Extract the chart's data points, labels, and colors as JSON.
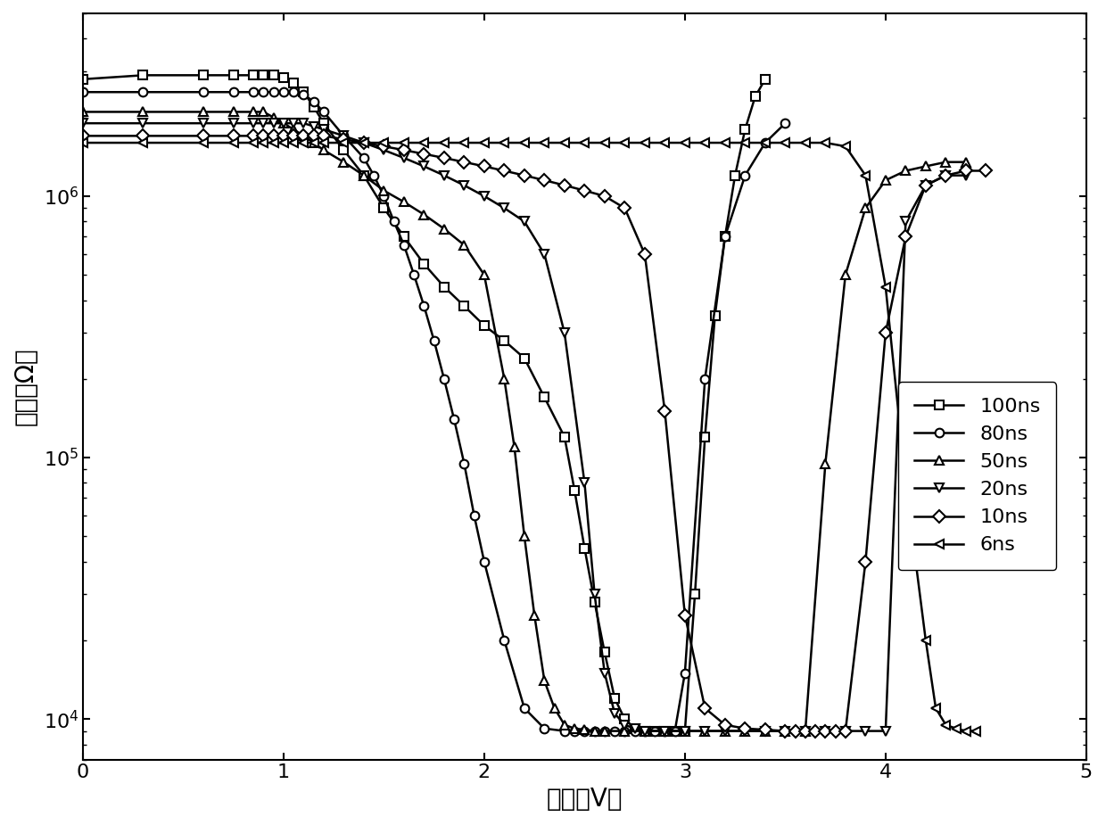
{
  "xlabel": "电压（V）",
  "ylabel": "电阵（Ω）",
  "xlim": [
    0,
    5
  ],
  "ylim": [
    7000,
    5000000
  ],
  "series": [
    {
      "label": "100ns",
      "marker": "s",
      "x": [
        0.0,
        0.3,
        0.6,
        0.75,
        0.85,
        0.9,
        0.95,
        1.0,
        1.05,
        1.1,
        1.15,
        1.2,
        1.3,
        1.4,
        1.5,
        1.6,
        1.7,
        1.8,
        1.9,
        2.0,
        2.1,
        2.2,
        2.3,
        2.4,
        2.45,
        2.5,
        2.55,
        2.6,
        2.65,
        2.7,
        2.75,
        2.8,
        2.85,
        2.9,
        2.95,
        3.0,
        3.05,
        3.1,
        3.15,
        3.2,
        3.25,
        3.3,
        3.35,
        3.4
      ],
      "y": [
        2800000,
        2900000,
        2900000,
        2900000,
        2900000,
        2900000,
        2900000,
        2850000,
        2700000,
        2500000,
        2200000,
        1900000,
        1500000,
        1200000,
        900000,
        700000,
        550000,
        450000,
        380000,
        320000,
        280000,
        240000,
        170000,
        120000,
        75000,
        45000,
        28000,
        18000,
        12000,
        10000,
        9200,
        9000,
        9000,
        9000,
        9000,
        9000,
        30000,
        120000,
        350000,
        700000,
        1200000,
        1800000,
        2400000,
        2800000
      ]
    },
    {
      "label": "80ns",
      "marker": "o",
      "x": [
        0.0,
        0.3,
        0.6,
        0.75,
        0.85,
        0.9,
        0.95,
        1.0,
        1.05,
        1.1,
        1.15,
        1.2,
        1.3,
        1.4,
        1.45,
        1.5,
        1.55,
        1.6,
        1.65,
        1.7,
        1.75,
        1.8,
        1.85,
        1.9,
        1.95,
        2.0,
        2.1,
        2.2,
        2.3,
        2.4,
        2.45,
        2.5,
        2.55,
        2.6,
        2.65,
        2.7,
        2.75,
        2.8,
        2.85,
        2.9,
        2.95,
        3.0,
        3.1,
        3.2,
        3.3,
        3.4,
        3.5
      ],
      "y": [
        2500000,
        2500000,
        2500000,
        2500000,
        2500000,
        2500000,
        2500000,
        2500000,
        2500000,
        2450000,
        2300000,
        2100000,
        1700000,
        1400000,
        1200000,
        1000000,
        800000,
        650000,
        500000,
        380000,
        280000,
        200000,
        140000,
        95000,
        60000,
        40000,
        20000,
        11000,
        9200,
        9000,
        9000,
        9000,
        9000,
        9000,
        9000,
        9000,
        9000,
        9000,
        9000,
        9000,
        9000,
        15000,
        200000,
        700000,
        1200000,
        1600000,
        1900000
      ]
    },
    {
      "label": "50ns",
      "marker": "^",
      "x": [
        0.0,
        0.3,
        0.6,
        0.75,
        0.85,
        0.9,
        0.95,
        1.0,
        1.05,
        1.1,
        1.15,
        1.2,
        1.3,
        1.4,
        1.5,
        1.6,
        1.7,
        1.8,
        1.9,
        2.0,
        2.1,
        2.15,
        2.2,
        2.25,
        2.3,
        2.35,
        2.4,
        2.45,
        2.5,
        2.55,
        2.6,
        2.7,
        2.8,
        2.9,
        3.0,
        3.1,
        3.2,
        3.3,
        3.4,
        3.5,
        3.6,
        3.7,
        3.8,
        3.9,
        4.0,
        4.1,
        4.2,
        4.3,
        4.4
      ],
      "y": [
        2100000,
        2100000,
        2100000,
        2100000,
        2100000,
        2100000,
        2000000,
        1900000,
        1800000,
        1700000,
        1600000,
        1500000,
        1350000,
        1200000,
        1050000,
        950000,
        850000,
        750000,
        650000,
        500000,
        200000,
        110000,
        50000,
        25000,
        14000,
        11000,
        9500,
        9200,
        9100,
        9000,
        9000,
        9000,
        9000,
        9000,
        9000,
        9000,
        9000,
        9000,
        9000,
        9000,
        9000,
        95000,
        500000,
        900000,
        1150000,
        1250000,
        1300000,
        1350000,
        1350000
      ]
    },
    {
      "label": "20ns",
      "marker": "v",
      "x": [
        0.0,
        0.3,
        0.6,
        0.75,
        0.85,
        0.9,
        0.95,
        1.0,
        1.05,
        1.1,
        1.15,
        1.2,
        1.3,
        1.4,
        1.5,
        1.6,
        1.7,
        1.8,
        1.9,
        2.0,
        2.1,
        2.2,
        2.3,
        2.4,
        2.5,
        2.55,
        2.6,
        2.65,
        2.7,
        2.75,
        2.8,
        2.9,
        3.0,
        3.1,
        3.2,
        3.3,
        3.4,
        3.5,
        3.6,
        3.7,
        3.8,
        3.9,
        4.0,
        4.1,
        4.2,
        4.3,
        4.4
      ],
      "y": [
        1900000,
        1900000,
        1900000,
        1900000,
        1900000,
        1900000,
        1900000,
        1900000,
        1900000,
        1900000,
        1850000,
        1800000,
        1700000,
        1600000,
        1500000,
        1400000,
        1300000,
        1200000,
        1100000,
        1000000,
        900000,
        800000,
        600000,
        300000,
        80000,
        30000,
        15000,
        10500,
        9500,
        9200,
        9000,
        9000,
        9000,
        9000,
        9000,
        9000,
        9000,
        9000,
        9000,
        9000,
        9000,
        9000,
        9000,
        800000,
        1100000,
        1200000,
        1200000
      ]
    },
    {
      "label": "10ns",
      "marker": "D",
      "x": [
        0.0,
        0.3,
        0.6,
        0.75,
        0.85,
        0.9,
        0.95,
        1.0,
        1.05,
        1.1,
        1.15,
        1.2,
        1.3,
        1.4,
        1.5,
        1.6,
        1.7,
        1.8,
        1.9,
        2.0,
        2.1,
        2.2,
        2.3,
        2.4,
        2.5,
        2.6,
        2.7,
        2.8,
        2.9,
        3.0,
        3.1,
        3.2,
        3.3,
        3.4,
        3.5,
        3.55,
        3.6,
        3.65,
        3.7,
        3.75,
        3.8,
        3.9,
        4.0,
        4.1,
        4.2,
        4.3,
        4.4,
        4.5
      ],
      "y": [
        1700000,
        1700000,
        1700000,
        1700000,
        1700000,
        1700000,
        1700000,
        1700000,
        1700000,
        1700000,
        1700000,
        1700000,
        1650000,
        1600000,
        1550000,
        1500000,
        1450000,
        1400000,
        1350000,
        1300000,
        1250000,
        1200000,
        1150000,
        1100000,
        1050000,
        1000000,
        900000,
        600000,
        150000,
        25000,
        11000,
        9500,
        9200,
        9100,
        9000,
        9000,
        9000,
        9000,
        9000,
        9000,
        9000,
        40000,
        300000,
        700000,
        1100000,
        1200000,
        1250000,
        1250000
      ]
    },
    {
      "label": "6ns",
      "marker": "<",
      "x": [
        0.0,
        0.3,
        0.6,
        0.75,
        0.85,
        0.9,
        0.95,
        1.0,
        1.05,
        1.1,
        1.15,
        1.2,
        1.3,
        1.4,
        1.5,
        1.6,
        1.7,
        1.8,
        1.9,
        2.0,
        2.1,
        2.2,
        2.3,
        2.4,
        2.5,
        2.6,
        2.7,
        2.8,
        2.9,
        3.0,
        3.1,
        3.2,
        3.3,
        3.4,
        3.5,
        3.6,
        3.7,
        3.8,
        3.9,
        4.0,
        4.1,
        4.2,
        4.25,
        4.3,
        4.35,
        4.4,
        4.45
      ],
      "y": [
        1600000,
        1600000,
        1600000,
        1600000,
        1600000,
        1600000,
        1600000,
        1600000,
        1600000,
        1600000,
        1600000,
        1600000,
        1600000,
        1600000,
        1600000,
        1600000,
        1600000,
        1600000,
        1600000,
        1600000,
        1600000,
        1600000,
        1600000,
        1600000,
        1600000,
        1600000,
        1600000,
        1600000,
        1600000,
        1600000,
        1600000,
        1600000,
        1600000,
        1600000,
        1600000,
        1600000,
        1600000,
        1550000,
        1200000,
        450000,
        80000,
        20000,
        11000,
        9500,
        9200,
        9000,
        9000
      ]
    }
  ],
  "line_color": "#000000",
  "marker_size": 7,
  "line_width": 1.8,
  "xlabel_fontsize": 20,
  "ylabel_fontsize": 20,
  "tick_fontsize": 16,
  "legend_fontsize": 16
}
